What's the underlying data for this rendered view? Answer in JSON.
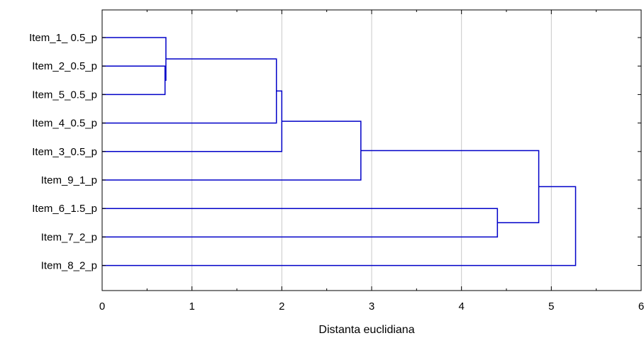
{
  "chart_data": {
    "type": "dendrogram",
    "orientation": "horizontal",
    "title": "",
    "xlabel": "Distanta euclidiana",
    "ylabel": "",
    "xlim": [
      0,
      6
    ],
    "x_ticks": [
      "0",
      "1",
      "2",
      "3",
      "4",
      "5",
      "6"
    ],
    "grid": "vertical",
    "leaves": [
      "Item_1_ 0.5_p",
      "Item_2_0.5_p",
      "Item_5_0.5_p",
      "Item_4_0.5_p",
      "Item_3_0.5_p",
      "Item_9_1_p",
      "Item_6_1.5_p",
      "Item_7_2_p",
      "Item_8_2_p"
    ],
    "merges": [
      {
        "children": [
          "Item_2_0.5_p",
          "Item_5_0.5_p"
        ],
        "distance": 0.7
      },
      {
        "children": [
          "Item_1_ 0.5_p",
          "cluster(Item_2,Item_5)"
        ],
        "distance": 0.71
      },
      {
        "children": [
          "cluster(Item_1,Item_2,Item_5)",
          "Item_4_0.5_p"
        ],
        "distance": 1.94
      },
      {
        "children": [
          "cluster(Item_1,Item_2,Item_5,Item_4)",
          "Item_3_0.5_p"
        ],
        "distance": 2.0
      },
      {
        "children": [
          "cluster(Item_1..Item_3)",
          "Item_9_1_p"
        ],
        "distance": 2.88
      },
      {
        "children": [
          "Item_6_1.5_p",
          "Item_7_2_p"
        ],
        "distance": 4.4
      },
      {
        "children": [
          "cluster(Item_1..Item_9)",
          "cluster(Item_6,Item_7)"
        ],
        "distance": 4.86
      },
      {
        "children": [
          "cluster(Item_1..Item_7)",
          "Item_8_2_p"
        ],
        "distance": 5.27
      }
    ],
    "colors": {
      "links": "#0000c8",
      "grid": "#c8c8c8",
      "axis": "#000000"
    }
  }
}
